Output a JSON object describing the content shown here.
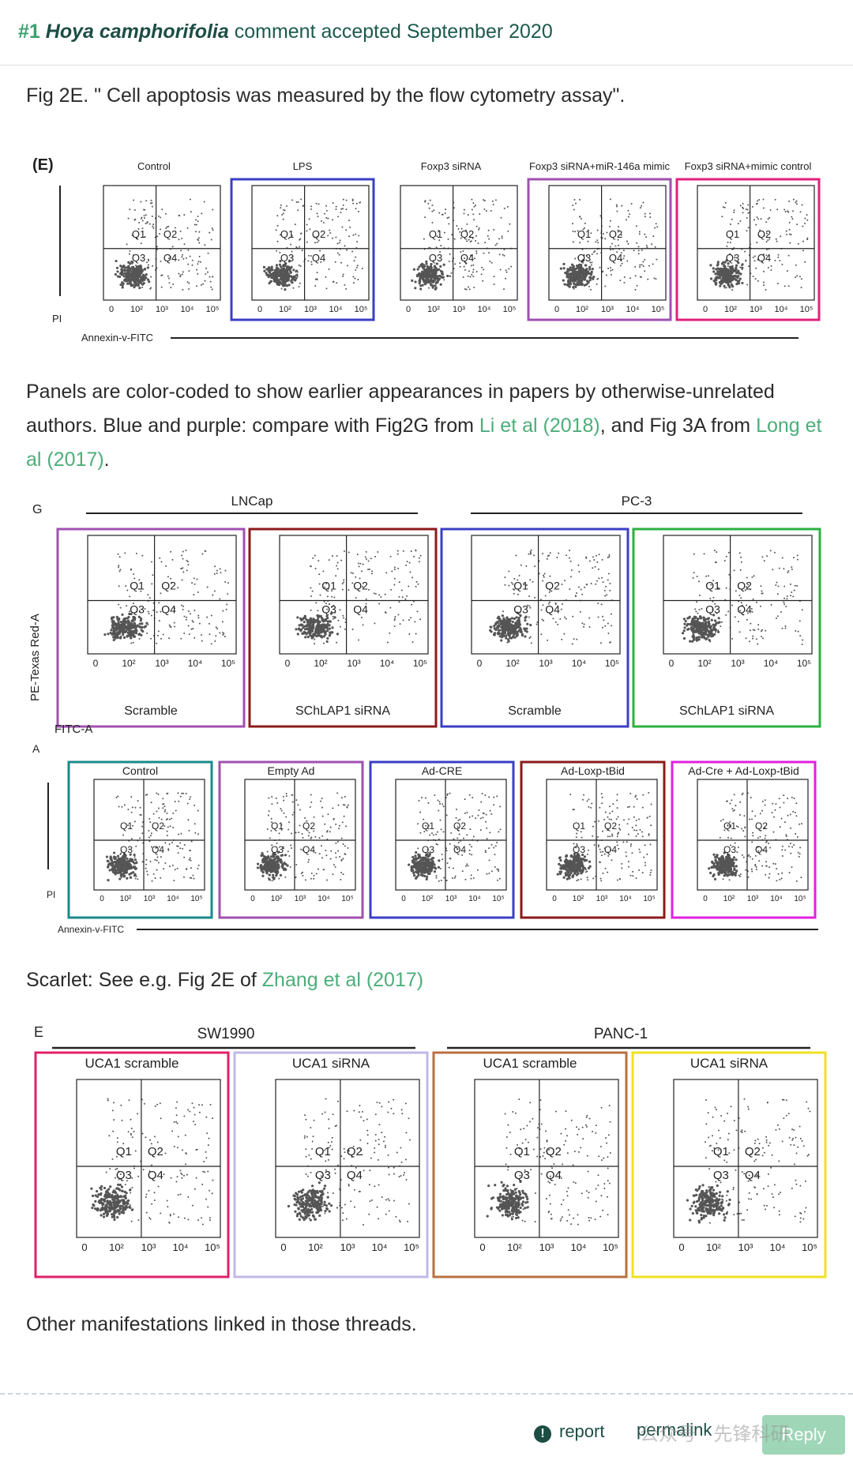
{
  "header": {
    "number": "#1",
    "species": "Hoya camphorifolia",
    "text": "comment accepted September 2020"
  },
  "p1": "Fig 2E. \" Cell apoptosis was measured by the flow cytometry assay\".",
  "figure1": {
    "label": "(E)",
    "panels": [
      "Control",
      "LPS",
      "Foxp3 siRNA",
      "Foxp3 siRNA+miR-146a mimic",
      "Foxp3 siRNA+mimic control"
    ],
    "y_label": "PI",
    "x_label": "Annexin-v-FITC",
    "quadrants": [
      "Q1",
      "Q2",
      "Q3",
      "Q4"
    ],
    "ticks": [
      "0",
      "10²",
      "10³",
      "10⁴",
      "10⁵"
    ]
  },
  "p2": [
    {
      "text": "Panels are color-coded to show earlier appearances in papers by otherwise-unrelated authors. Blue and purple: compare with Fig2G from "
    },
    {
      "link": "Li et al (2018)"
    },
    {
      "text": ", and Fig 3A from "
    },
    {
      "link": "Long et al (2017)"
    },
    {
      "text": "."
    }
  ],
  "figure2": {
    "label": "G",
    "groups": [
      "LNCap",
      "PC-3"
    ],
    "panels": [
      "Scramble",
      "SChLAP1 siRNA",
      "Scramble",
      "SChLAP1 siRNA"
    ],
    "y_label": "PE-Texas Red-A",
    "x_label": "FITC-A",
    "quadrants": [
      "Q1",
      "Q2",
      "Q3",
      "Q4"
    ],
    "ticks": [
      "0",
      "10²",
      "10³",
      "10⁴",
      "10⁵"
    ]
  },
  "figure3": {
    "label": "A",
    "panels": [
      "Control",
      "Empty Ad",
      "Ad-CRE",
      "Ad-Loxp-tBid",
      "Ad-Cre + Ad-Loxp-tBid"
    ],
    "y_label": "PI",
    "x_label": "Annexin-v-FITC",
    "quadrants": [
      "Q1",
      "Q2",
      "Q3",
      "Q4"
    ],
    "ticks": [
      "0",
      "10²",
      "10³",
      "10⁴",
      "10⁵"
    ]
  },
  "p3": [
    {
      "text": "Scarlet: See e.g. Fig 2E of "
    },
    {
      "link": "Zhang et al (2017)"
    }
  ],
  "figure4": {
    "label": "E",
    "groups": [
      "SW1990",
      "PANC-1"
    ],
    "panels": [
      "UCA1 scramble",
      "UCA1 siRNA",
      "UCA1 scramble",
      "UCA1 siRNA"
    ],
    "quadrants": [
      "Q1",
      "Q2",
      "Q3",
      "Q4"
    ],
    "ticks": [
      "0",
      "10²",
      "10³",
      "10⁴",
      "10⁵"
    ]
  },
  "p4": "Other manifestations linked in those threads.",
  "footer": {
    "report": "report",
    "permalink": "permalink",
    "reply": "Reply",
    "watermark": "公众号 · 先锋科研"
  }
}
